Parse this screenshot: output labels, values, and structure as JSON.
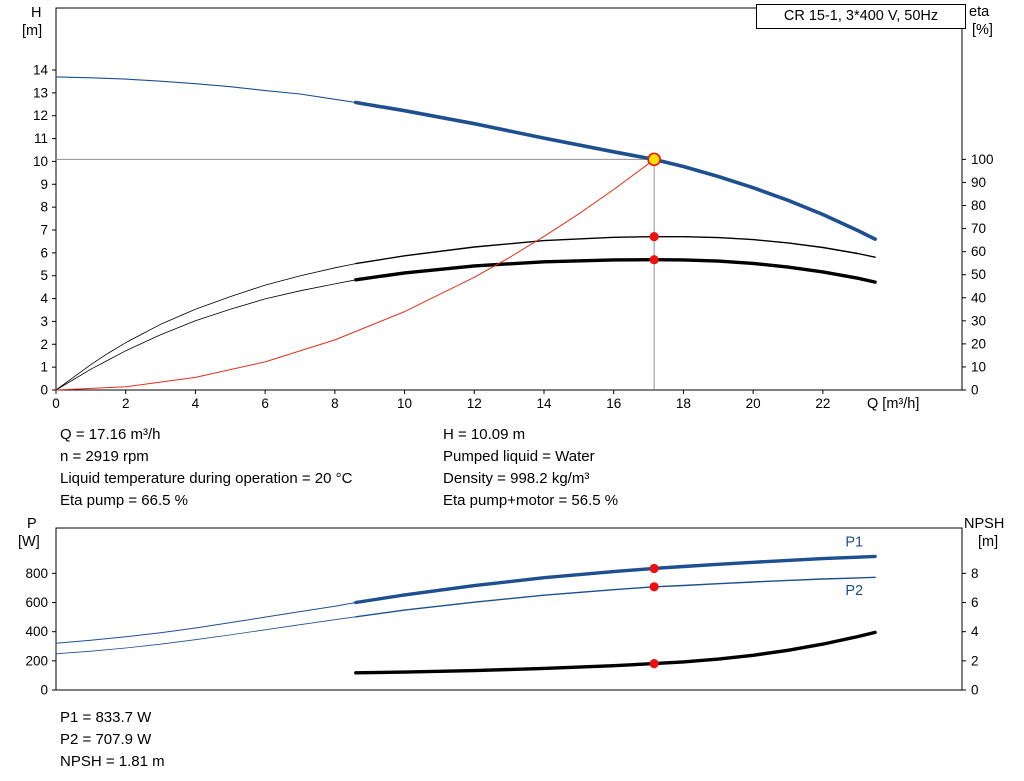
{
  "title_box": "CR 15-1, 3*400 V, 50Hz",
  "colors": {
    "blue": "#1d4f91",
    "black": "#000000",
    "red_line": "#e0301e",
    "red_dot": "#ee1111",
    "duty_fill": "#ffe100",
    "guide_gray": "#909090"
  },
  "operating_point": {
    "top_left": [
      "Q = 17.16 m³/h",
      "n = 2919 rpm",
      "Liquid temperature during operation = 20 °C",
      "Eta pump = 66.5 %"
    ],
    "top_right": [
      "H = 10.09 m",
      "Pumped liquid = Water",
      "Density = 998.2 kg/m³",
      "Eta pump+motor = 56.5 %"
    ],
    "bottom": [
      "P1 = 833.7 W",
      "P2 = 707.9 W",
      "NPSH = 1.81 m"
    ]
  },
  "chart_data": [
    {
      "type": "line",
      "name": "hq-eta-chart",
      "title": "CR 15-1, 3*400 V, 50Hz",
      "xlabel": "Q [m³/h]",
      "ylabel_left": "H",
      "ylabel_left_unit": "[m]",
      "ylabel_right": "eta",
      "ylabel_right_unit": "[%]",
      "xlim": [
        0,
        26
      ],
      "ylim_left": [
        0,
        16.7
      ],
      "ylim_right": [
        0,
        100
      ],
      "grid": false,
      "x_ticks": [
        0,
        2,
        4,
        6,
        8,
        10,
        12,
        14,
        16,
        18,
        20,
        22
      ],
      "y_left_ticks": [
        0,
        1,
        2,
        3,
        4,
        5,
        6,
        7,
        8,
        9,
        10,
        11,
        12,
        13,
        14
      ],
      "y_right_ticks": [
        0,
        10,
        20,
        30,
        40,
        50,
        60,
        70,
        80,
        90,
        100
      ],
      "guides": [
        {
          "dir": "h",
          "at": 10.09,
          "from": 0,
          "to": 17.16,
          "scale": "left"
        },
        {
          "dir": "v",
          "at": 17.16,
          "from": 0,
          "to": 10.09,
          "scale": "left"
        }
      ],
      "series": [
        {
          "name": "head-curve-thin",
          "color": "blue",
          "width": 1.1,
          "scale": "left",
          "x": [
            0,
            1,
            2,
            3,
            4,
            5,
            6,
            7,
            8,
            8.6
          ],
          "y": [
            13.7,
            13.66,
            13.6,
            13.51,
            13.4,
            13.27,
            13.1,
            12.95,
            12.72,
            12.58
          ]
        },
        {
          "name": "head-curve-main",
          "color": "blue",
          "width": 3.6,
          "scale": "left",
          "x": [
            8.6,
            10,
            12,
            14,
            16,
            17.16,
            18,
            19,
            20,
            21,
            22,
            23,
            23.5
          ],
          "y": [
            12.58,
            12.22,
            11.65,
            11.02,
            10.42,
            10.09,
            9.78,
            9.34,
            8.85,
            8.3,
            7.68,
            6.98,
            6.6
          ]
        },
        {
          "name": "eta-pump-curve-thin",
          "color": "black",
          "width": 0.8,
          "scale": "right",
          "x": [
            0,
            0.5,
            1,
            1.5,
            2,
            2.5,
            3,
            4,
            5,
            6,
            7,
            8,
            8.6
          ],
          "y": [
            0,
            5.5,
            11,
            16,
            20.5,
            24.5,
            28.5,
            35,
            40.5,
            45.5,
            49.5,
            53,
            54.8
          ]
        },
        {
          "name": "eta-pump-curve-main",
          "color": "black",
          "width": 1.4,
          "scale": "right",
          "x": [
            8.6,
            10,
            12,
            14,
            16,
            17.16,
            18,
            19,
            20,
            21,
            22,
            23,
            23.5
          ],
          "y": [
            54.8,
            58.2,
            62,
            64.8,
            66.2,
            66.5,
            66.5,
            66.1,
            65.2,
            63.8,
            61.8,
            59.2,
            57.6
          ]
        },
        {
          "name": "eta-pump-motor-curve-thin",
          "color": "black",
          "width": 0.8,
          "scale": "right",
          "x": [
            0,
            0.5,
            1,
            1.5,
            2,
            2.5,
            3,
            4,
            5,
            6,
            7,
            8,
            8.6
          ],
          "y": [
            0,
            4.5,
            9,
            13,
            17,
            20.5,
            24,
            30,
            35,
            39.5,
            43,
            46,
            47.8
          ]
        },
        {
          "name": "eta-pump-motor-curve-main",
          "color": "black",
          "width": 3.4,
          "scale": "right",
          "x": [
            8.6,
            10,
            12,
            14,
            16,
            17.16,
            18,
            19,
            20,
            21,
            22,
            23,
            23.5
          ],
          "y": [
            47.8,
            50.8,
            53.8,
            55.6,
            56.4,
            56.5,
            56.4,
            55.9,
            54.9,
            53.3,
            51.2,
            48.5,
            46.8
          ]
        },
        {
          "name": "system-curve",
          "color": "red_line",
          "width": 1,
          "scale": "left",
          "x": [
            0,
            2,
            4,
            6,
            8,
            10,
            12,
            13,
            14,
            15,
            16,
            17,
            17.16
          ],
          "y": [
            0,
            0.14,
            0.55,
            1.23,
            2.19,
            3.43,
            4.93,
            5.79,
            6.72,
            7.71,
            8.77,
            9.9,
            10.09
          ]
        }
      ],
      "markers": [
        {
          "q": 17.16,
          "v": 66.5,
          "scale": "right",
          "kind": "dot"
        },
        {
          "q": 17.16,
          "v": 56.5,
          "scale": "right",
          "kind": "dot"
        },
        {
          "q": 17.16,
          "v": 10.09,
          "scale": "left",
          "kind": "duty"
        }
      ]
    },
    {
      "type": "line",
      "name": "power-npsh-chart",
      "ylabel_left": "P",
      "ylabel_left_unit": "[W]",
      "ylabel_right": "NPSH",
      "ylabel_right_unit": "[m]",
      "xlim": [
        0,
        26
      ],
      "ylim_left": [
        0,
        1110
      ],
      "ylim_right": [
        0,
        11.1
      ],
      "grid": false,
      "x_ticks": [],
      "y_left_ticks": [
        0,
        200,
        400,
        600,
        800
      ],
      "y_right_ticks": [
        0,
        2,
        4,
        6,
        8
      ],
      "guides": [],
      "series": [
        {
          "name": "p1-curve-thin",
          "color": "blue",
          "width": 1,
          "scale": "left",
          "x": [
            0,
            1,
            2,
            3,
            4,
            5,
            6,
            7,
            8,
            8.6
          ],
          "y": [
            320,
            341,
            365,
            393,
            425,
            462,
            500,
            538,
            575,
            600
          ]
        },
        {
          "name": "p1-curve-main",
          "color": "blue",
          "width": 3.4,
          "scale": "left",
          "x": [
            8.6,
            10,
            12,
            14,
            16,
            17.16,
            18,
            19,
            20,
            21,
            22,
            23,
            23.5
          ],
          "y": [
            600,
            652,
            716,
            770,
            812,
            833.7,
            847,
            862,
            876,
            889,
            901,
            911,
            916
          ]
        },
        {
          "name": "p2-curve-thin",
          "color": "blue",
          "width": 0.8,
          "scale": "left",
          "x": [
            0,
            1,
            2,
            3,
            4,
            5,
            6,
            7,
            8,
            8.6
          ],
          "y": [
            248,
            266,
            288,
            314,
            345,
            378,
            413,
            448,
            482,
            502
          ]
        },
        {
          "name": "p2-curve-main",
          "color": "blue",
          "width": 1.4,
          "scale": "left",
          "x": [
            8.6,
            10,
            12,
            14,
            16,
            17.16,
            18,
            19,
            20,
            21,
            22,
            23,
            23.5
          ],
          "y": [
            502,
            548,
            602,
            650,
            688,
            707.9,
            717,
            729,
            741,
            752,
            761,
            769,
            773
          ]
        },
        {
          "name": "npsh-curve-main",
          "color": "black",
          "width": 3.4,
          "scale": "right",
          "x": [
            8.6,
            10,
            12,
            14,
            16,
            17.16,
            18,
            19,
            20,
            21,
            22,
            23,
            23.5
          ],
          "y": [
            1.18,
            1.23,
            1.33,
            1.48,
            1.67,
            1.81,
            1.93,
            2.12,
            2.38,
            2.72,
            3.15,
            3.66,
            3.95
          ]
        }
      ],
      "curve_labels": [
        {
          "text": "P1",
          "q": 22.9,
          "v": 985,
          "scale": "left"
        },
        {
          "text": "P2",
          "q": 22.9,
          "v": 652,
          "scale": "left"
        }
      ],
      "markers": [
        {
          "q": 17.16,
          "v": 833.7,
          "scale": "left",
          "kind": "dot"
        },
        {
          "q": 17.16,
          "v": 707.9,
          "scale": "left",
          "kind": "dot"
        },
        {
          "q": 17.16,
          "v": 1.81,
          "scale": "right",
          "kind": "dot"
        }
      ]
    }
  ]
}
